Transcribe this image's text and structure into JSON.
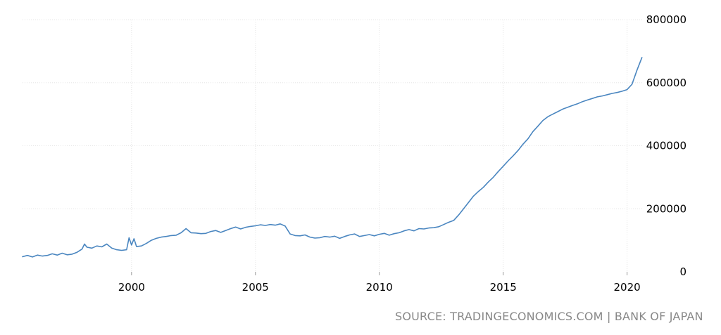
{
  "chart_data": {
    "type": "line",
    "title": "",
    "xlabel": "",
    "ylabel": "",
    "xlim": [
      1995.6,
      2020.75
    ],
    "ylim": [
      0,
      800000
    ],
    "x_ticks": [
      {
        "value": 2000,
        "label": "2000"
      },
      {
        "value": 2005,
        "label": "2005"
      },
      {
        "value": 2010,
        "label": "2010"
      },
      {
        "value": 2015,
        "label": "2015"
      },
      {
        "value": 2020,
        "label": "2020"
      }
    ],
    "y_ticks": [
      {
        "value": 0,
        "label": "0"
      },
      {
        "value": 200000,
        "label": "200000"
      },
      {
        "value": 400000,
        "label": "400000"
      },
      {
        "value": 600000,
        "label": "600000"
      },
      {
        "value": 800000,
        "label": "800000"
      }
    ],
    "grid": true,
    "legend": "none",
    "line_color": "#4a86c0",
    "grid_color": "#e6e6e6",
    "series": [
      {
        "x": [
          1995.6,
          1995.8,
          1996.0,
          1996.2,
          1996.4,
          1996.6,
          1996.8,
          1997.0,
          1997.2,
          1997.4,
          1997.6,
          1997.8,
          1998.0,
          1998.1,
          1998.2,
          1998.4,
          1998.6,
          1998.8,
          1999.0,
          1999.2,
          1999.4,
          1999.6,
          1999.8,
          1999.9,
          2000.0,
          2000.1,
          2000.2,
          2000.4,
          2000.6,
          2000.8,
          2001.0,
          2001.2,
          2001.4,
          2001.6,
          2001.8,
          2002.0,
          2002.2,
          2002.4,
          2002.6,
          2002.8,
          2003.0,
          2003.2,
          2003.4,
          2003.6,
          2003.8,
          2004.0,
          2004.2,
          2004.4,
          2004.6,
          2004.8,
          2005.0,
          2005.2,
          2005.4,
          2005.6,
          2005.8,
          2006.0,
          2006.2,
          2006.4,
          2006.6,
          2006.8,
          2007.0,
          2007.2,
          2007.4,
          2007.6,
          2007.8,
          2008.0,
          2008.2,
          2008.4,
          2008.6,
          2008.8,
          2009.0,
          2009.2,
          2009.4,
          2009.6,
          2009.8,
          2010.0,
          2010.2,
          2010.4,
          2010.6,
          2010.8,
          2011.0,
          2011.2,
          2011.4,
          2011.6,
          2011.8,
          2012.0,
          2012.2,
          2012.4,
          2012.6,
          2012.8,
          2013.0,
          2013.2,
          2013.4,
          2013.6,
          2013.8,
          2014.0,
          2014.2,
          2014.4,
          2014.6,
          2014.8,
          2015.0,
          2015.2,
          2015.4,
          2015.6,
          2015.8,
          2016.0,
          2016.2,
          2016.4,
          2016.6,
          2016.8,
          2017.0,
          2017.2,
          2017.4,
          2017.6,
          2017.8,
          2018.0,
          2018.2,
          2018.4,
          2018.6,
          2018.8,
          2019.0,
          2019.2,
          2019.4,
          2019.6,
          2019.8,
          2020.0,
          2020.2,
          2020.4,
          2020.6
        ],
        "values": [
          48000,
          52000,
          47000,
          53000,
          50000,
          52000,
          57000,
          53000,
          59000,
          54000,
          56000,
          62000,
          72000,
          88000,
          78000,
          75000,
          82000,
          79000,
          88000,
          75000,
          70000,
          68000,
          70000,
          108000,
          85000,
          105000,
          80000,
          82000,
          90000,
          100000,
          106000,
          110000,
          112000,
          115000,
          116000,
          124000,
          137000,
          124000,
          123000,
          121000,
          122000,
          128000,
          131000,
          125000,
          131000,
          137000,
          142000,
          136000,
          141000,
          144000,
          146000,
          149000,
          147000,
          150000,
          148000,
          152000,
          145000,
          120000,
          115000,
          114000,
          117000,
          110000,
          107000,
          108000,
          112000,
          110000,
          113000,
          106000,
          112000,
          117000,
          120000,
          112000,
          115000,
          118000,
          114000,
          119000,
          122000,
          116000,
          121000,
          124000,
          130000,
          134000,
          130000,
          137000,
          136000,
          139000,
          140000,
          143000,
          150000,
          157000,
          163000,
          180000,
          200000,
          220000,
          240000,
          255000,
          268000,
          285000,
          300000,
          318000,
          335000,
          352000,
          368000,
          385000,
          405000,
          422000,
          445000,
          462000,
          480000,
          492000,
          500000,
          508000,
          516000,
          522000,
          528000,
          533000,
          540000,
          545000,
          550000,
          555000,
          558000,
          562000,
          566000,
          569000,
          573000,
          578000,
          595000,
          640000,
          680000
        ]
      }
    ]
  },
  "source_text": "SOURCE: TRADINGECONOMICS.COM | BANK OF JAPAN"
}
